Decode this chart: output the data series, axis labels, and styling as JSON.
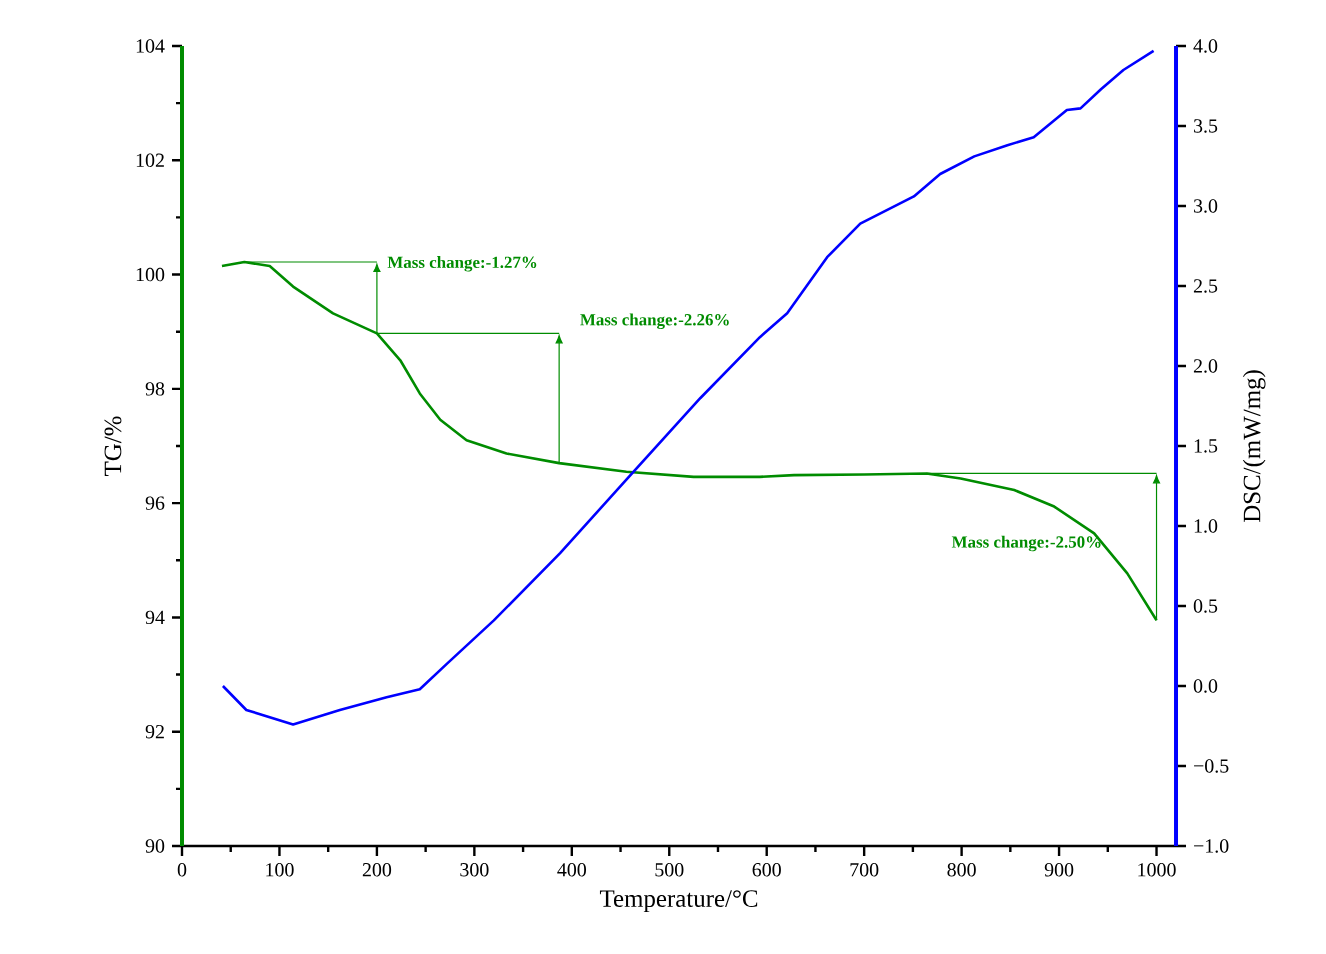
{
  "chart_data": {
    "type": "line",
    "xlabel": "Temperature/°C",
    "ylabel": "TG/%",
    "y2label": "DSC/(mW/mg)",
    "xlim": [
      0,
      1020
    ],
    "ylim": [
      90,
      104
    ],
    "y2lim": [
      -1,
      4
    ],
    "xticks": [
      0,
      {
        "value": 50,
        "label": null
      },
      100,
      {
        "value": 150,
        "label": null
      },
      200,
      {
        "value": 250,
        "label": null
      },
      300,
      {
        "value": 350,
        "label": null
      },
      400,
      {
        "value": 450,
        "label": null
      },
      500,
      {
        "value": 550,
        "label": null
      },
      600,
      {
        "value": 650,
        "label": null
      },
      700,
      {
        "value": 750,
        "label": null
      },
      800,
      {
        "value": 850,
        "label": null
      },
      900,
      {
        "value": 950,
        "label": null
      },
      1000
    ],
    "yticks": [
      90,
      {
        "value": 91,
        "label": null
      },
      92,
      {
        "value": 93,
        "label": null
      },
      94,
      {
        "value": 95,
        "label": null
      },
      96,
      {
        "value": 97,
        "label": null
      },
      98,
      {
        "value": 99,
        "label": null
      },
      100,
      {
        "value": 101,
        "label": null
      },
      102,
      {
        "value": 103,
        "label": null
      },
      104
    ],
    "y2ticks": [
      {
        "value": -1,
        "label": "−1.0"
      },
      {
        "value": -0.5,
        "label": "−0.5"
      },
      {
        "value": 0,
        "label": "0.0"
      },
      {
        "value": 0.5,
        "label": "0.5"
      },
      {
        "value": 1,
        "label": "1.0"
      },
      {
        "value": 1.5,
        "label": "1.5"
      },
      {
        "value": 2,
        "label": "2.0"
      },
      {
        "value": 2.5,
        "label": "2.5"
      },
      {
        "value": 3,
        "label": "3.0"
      },
      {
        "value": 3.5,
        "label": "3.5"
      },
      {
        "value": 4,
        "label": "4.0"
      }
    ],
    "grid": false,
    "marker": "none",
    "line_style": "solid",
    "series": [
      {
        "color": "#008c00",
        "x": [
          41,
          64,
          90,
          114,
          155,
          200,
          224,
          244,
          265,
          292,
          333,
          387,
          456,
          525,
          593,
          628,
          700,
          764,
          799,
          854,
          895,
          936,
          970,
          1000
        ],
        "values": [
          100.15,
          100.22,
          100.15,
          99.79,
          99.32,
          98.97,
          98.5,
          97.92,
          97.46,
          97.1,
          96.87,
          96.7,
          96.55,
          96.46,
          96.46,
          96.49,
          96.5,
          96.52,
          96.43,
          96.23,
          95.94,
          95.47,
          94.77,
          93.95
        ]
      },
      {
        "color": "#0000ff",
        "axis": "y2",
        "x": [
          42,
          66,
          114,
          162,
          210,
          244,
          272,
          320,
          388,
          456,
          532,
          593,
          621,
          662,
          696,
          751,
          778,
          813,
          847,
          874,
          908,
          922,
          943,
          966,
          997
        ],
        "values": [
          0.0,
          -0.15,
          -0.24,
          -0.15,
          -0.07,
          -0.02,
          0.14,
          0.41,
          0.83,
          1.29,
          1.8,
          2.18,
          2.33,
          2.68,
          2.89,
          3.06,
          3.2,
          3.31,
          3.38,
          3.43,
          3.6,
          3.61,
          3.73,
          3.85,
          3.97
        ]
      }
    ],
    "annotations": [
      {
        "text": "Mass change:-1.27%",
        "x": 200,
        "y": 98.97
      },
      {
        "text": "Mass change:-2.26%",
        "x": 200,
        "y": 98.97
      },
      "Mass change:-2.50%"
    ]
  }
}
